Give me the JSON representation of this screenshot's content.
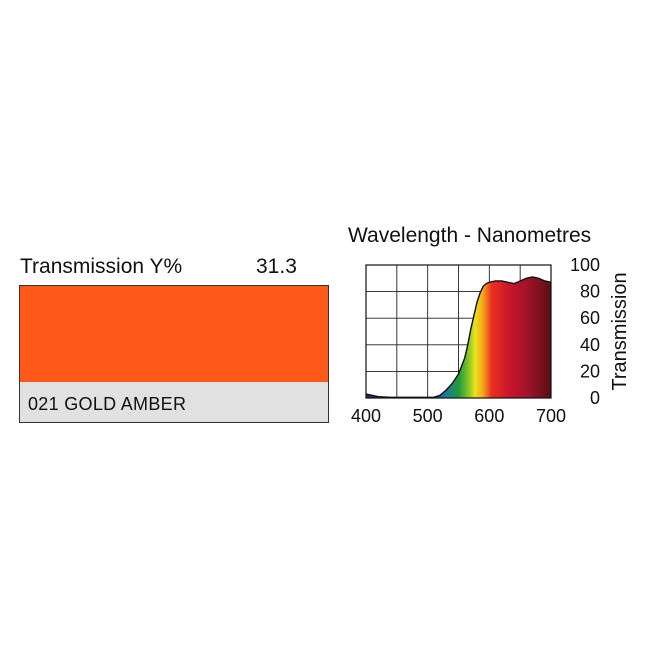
{
  "swatch": {
    "label": "Transmission Y%",
    "value": "31.3",
    "name": "021 GOLD AMBER",
    "color": "#ff5a1a"
  },
  "chart_data": {
    "type": "area",
    "title": "Wavelength - Nanometres",
    "xlabel": "",
    "ylabel": "Transmission",
    "xlim": [
      400,
      700
    ],
    "ylim": [
      0,
      100
    ],
    "x_ticks": [
      400,
      500,
      600,
      700
    ],
    "y_ticks": [
      0,
      20,
      40,
      60,
      80,
      100
    ],
    "grid": true,
    "series": [
      {
        "x": [
          400,
          410,
          420,
          440,
          460,
          480,
          500,
          510,
          520,
          530,
          540,
          550,
          560,
          565,
          570,
          575,
          580,
          585,
          590,
          595,
          600,
          610,
          620,
          630,
          640,
          650,
          660,
          670,
          680,
          690,
          700
        ],
        "values": [
          3,
          2,
          1,
          0.5,
          0.5,
          0.5,
          0.5,
          0.5,
          2,
          6,
          11,
          18,
          30,
          40,
          52,
          62,
          72,
          79,
          84,
          86,
          87,
          88,
          88,
          87,
          86,
          88,
          90,
          91,
          90,
          88,
          87
        ]
      }
    ]
  }
}
